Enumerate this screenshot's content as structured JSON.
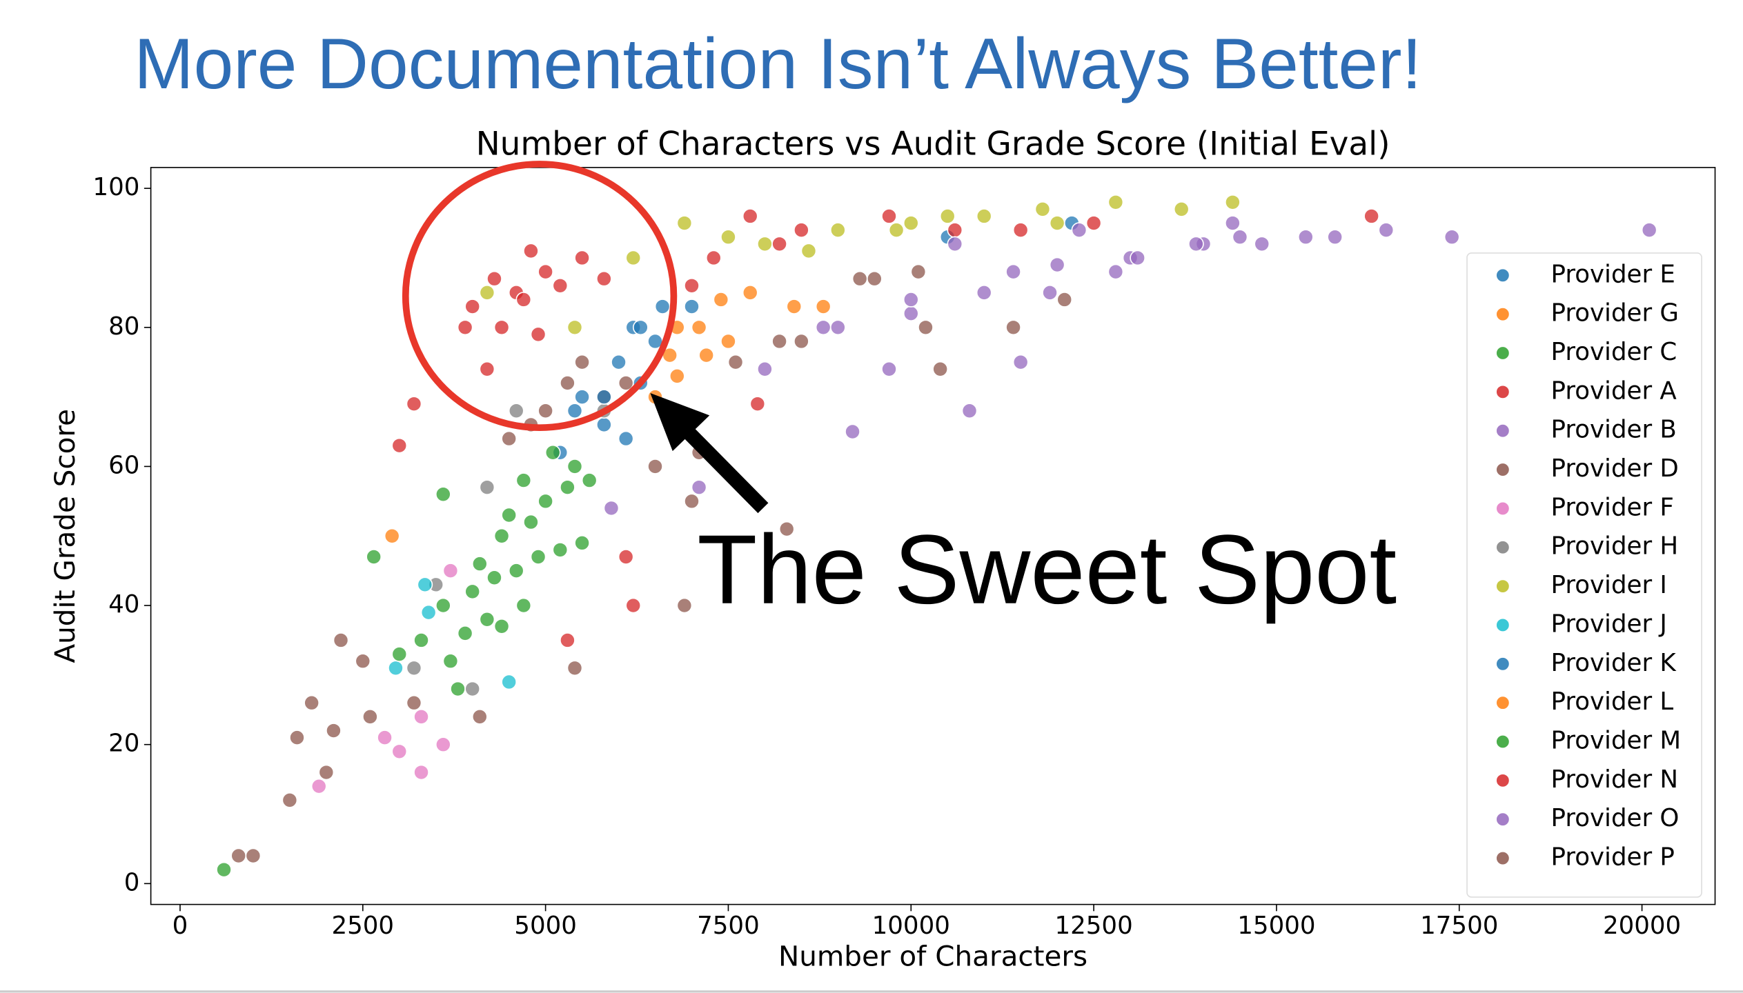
{
  "slide_title": "More Documentation Isn’t Always Better!",
  "chart_data": {
    "type": "scatter",
    "title": "Number of Characters vs Audit Grade Score (Initial Eval)",
    "xlabel": "Number of Characters",
    "ylabel": "Audit Grade Score",
    "annotations": [
      "The Sweet Spot"
    ],
    "xlim": [
      -400,
      21000
    ],
    "ylim": [
      -3,
      103
    ],
    "xticks": [
      0,
      2500,
      5000,
      7500,
      10000,
      12500,
      15000,
      17500,
      20000
    ],
    "yticks": [
      0,
      20,
      40,
      60,
      80,
      100
    ],
    "legend": "center right",
    "series": [
      {
        "name": "Provider E",
        "color": "#1f77b4",
        "x": [
          6200,
          6000,
          5500,
          6500,
          7000,
          5800,
          6300,
          10500,
          12200,
          5200
        ],
        "values": [
          80,
          75,
          70,
          78,
          83,
          66,
          72,
          93,
          95,
          62
        ]
      },
      {
        "name": "Provider G",
        "color": "#ff7f0e",
        "x": [
          7100,
          7500,
          7800,
          8400,
          6800,
          2900,
          6700
        ],
        "values": [
          80,
          78,
          85,
          83,
          73,
          50,
          76
        ]
      },
      {
        "name": "Provider C",
        "color": "#2ca02c",
        "x": [
          600,
          2650,
          3300,
          3600,
          3800,
          4000,
          4200,
          4400,
          4600,
          4800,
          5000,
          5200,
          5400,
          4300,
          4700,
          3900,
          5600,
          4900,
          4500,
          5100,
          5500
        ],
        "values": [
          2,
          47,
          35,
          56,
          28,
          42,
          38,
          50,
          45,
          52,
          55,
          48,
          60,
          44,
          40,
          36,
          58,
          47,
          53,
          62,
          49
        ]
      },
      {
        "name": "Provider A",
        "color": "#d62728",
        "x": [
          4000,
          4300,
          4600,
          4800,
          5000,
          5200,
          4400,
          4900,
          4200,
          5500,
          3900,
          4700,
          5800,
          3000,
          3200,
          6100,
          6200,
          5300
        ],
        "values": [
          83,
          87,
          85,
          91,
          88,
          86,
          80,
          79,
          74,
          90,
          80,
          84,
          87,
          63,
          69,
          47,
          40,
          35
        ]
      },
      {
        "name": "Provider B",
        "color": "#9467bd",
        "x": [
          9000,
          10000,
          11000,
          12000,
          13000,
          14000,
          15800,
          16500,
          17400,
          20100,
          9200,
          10800,
          8000,
          11500,
          14500,
          12800,
          7100,
          5900
        ],
        "values": [
          80,
          82,
          85,
          89,
          90,
          92,
          93,
          94,
          93,
          94,
          65,
          68,
          74,
          75,
          93,
          88,
          57,
          54
        ]
      },
      {
        "name": "Provider D",
        "color": "#8c564b",
        "x": [
          5000,
          5300,
          4800,
          5500,
          4500,
          5800,
          6500,
          7000,
          6100,
          7600,
          8200,
          9300,
          10200,
          1600,
          1000
        ],
        "values": [
          68,
          72,
          66,
          75,
          64,
          70,
          60,
          55,
          72,
          75,
          78,
          87,
          80,
          21,
          4
        ]
      },
      {
        "name": "Provider F",
        "color": "#e377c2",
        "x": [
          3300,
          2800,
          1900,
          3600,
          3000,
          3700,
          3300
        ],
        "values": [
          24,
          21,
          14,
          20,
          19,
          45,
          16
        ]
      },
      {
        "name": "Provider H",
        "color": "#7f7f7f",
        "x": [
          4000,
          3500,
          4600,
          4200,
          3200,
          5800
        ],
        "values": [
          28,
          43,
          68,
          57,
          31,
          68
        ]
      },
      {
        "name": "Provider I",
        "color": "#bcbd22",
        "x": [
          4200,
          5400,
          6200,
          6900,
          7500,
          8000,
          9000,
          10000,
          11000,
          11800,
          12800,
          13700,
          14400,
          8600,
          9800,
          10500,
          12000
        ],
        "values": [
          85,
          80,
          90,
          95,
          93,
          92,
          94,
          95,
          96,
          97,
          98,
          97,
          98,
          91,
          94,
          96,
          95
        ]
      },
      {
        "name": "Provider J",
        "color": "#17becf",
        "x": [
          2950,
          4500,
          3400,
          3350
        ],
        "values": [
          31,
          29,
          39,
          43
        ]
      },
      {
        "name": "Provider K",
        "color": "#1f77b4",
        "x": [
          5800,
          6300,
          6600,
          5400,
          6100
        ],
        "values": [
          70,
          80,
          83,
          68,
          64
        ]
      },
      {
        "name": "Provider L",
        "color": "#ff7f0e",
        "x": [
          6800,
          7400,
          7200,
          8800,
          6500
        ],
        "values": [
          80,
          84,
          76,
          83,
          70
        ]
      },
      {
        "name": "Provider M",
        "color": "#2ca02c",
        "x": [
          3600,
          4100,
          4400,
          4700,
          5300,
          3000,
          3700
        ],
        "values": [
          40,
          46,
          37,
          58,
          57,
          33,
          32
        ]
      },
      {
        "name": "Provider N",
        "color": "#d62728",
        "x": [
          7300,
          7800,
          8200,
          9700,
          10600,
          16300,
          12500,
          11500,
          8500,
          7000,
          7900
        ],
        "values": [
          90,
          96,
          92,
          96,
          94,
          96,
          95,
          94,
          94,
          86,
          69
        ]
      },
      {
        "name": "Provider O",
        "color": "#9467bd",
        "x": [
          9700,
          10600,
          11400,
          12300,
          13100,
          14400,
          15400,
          8800,
          10000,
          11900,
          13900,
          14800
        ],
        "values": [
          74,
          92,
          88,
          94,
          90,
          95,
          93,
          80,
          84,
          85,
          92,
          92
        ]
      },
      {
        "name": "Provider P",
        "color": "#8c564b",
        "x": [
          1500,
          800,
          1800,
          2000,
          2100,
          2200,
          2500,
          2600,
          3200,
          4100,
          5400,
          6900,
          7100,
          8300,
          8500,
          9500,
          10100,
          11400,
          12100,
          10400
        ],
        "values": [
          12,
          4,
          26,
          16,
          22,
          35,
          32,
          24,
          26,
          24,
          31,
          40,
          62,
          51,
          78,
          87,
          88,
          80,
          84,
          74
        ]
      }
    ]
  }
}
